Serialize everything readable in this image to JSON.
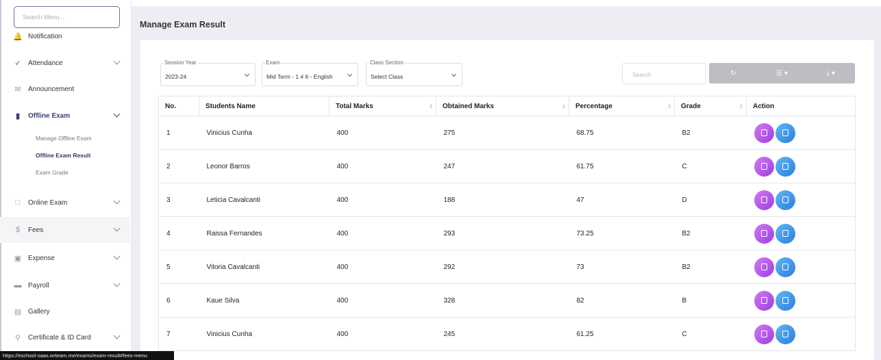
{
  "sidebar": {
    "search_placeholder": "Search Menu...",
    "items": [
      {
        "label": "Notification",
        "icon": "bell-icon"
      },
      {
        "label": "Attendance",
        "icon": "check-icon"
      },
      {
        "label": "Announcement",
        "icon": "megaphone-icon"
      },
      {
        "label": "Offline Exam",
        "icon": "book-icon"
      },
      {
        "label": "Online Exam",
        "icon": "laptop-icon"
      },
      {
        "label": "Fees",
        "icon": "dollar-icon"
      },
      {
        "label": "Expense",
        "icon": "money-icon"
      },
      {
        "label": "Payroll",
        "icon": "card-icon"
      },
      {
        "label": "Gallery",
        "icon": "image-icon"
      },
      {
        "label": "Certificate & ID Card",
        "icon": "trophy-icon"
      }
    ],
    "offline_exam_sub": [
      "Manage Offline Exam",
      "Offline Exam Result",
      "Exam Grade"
    ]
  },
  "page": {
    "title": "Manage Exam Result"
  },
  "filters": {
    "session_year": {
      "label": "Session Year",
      "value": "2023-24"
    },
    "exam": {
      "label": "Exam",
      "value": "Mid Term - 1 # 6 - English"
    },
    "class_section": {
      "label": "Class Section",
      "value": "Select Class"
    }
  },
  "toolbar": {
    "search_placeholder": "Search",
    "refresh_icon": "refresh-icon",
    "columns_icon": "list-icon",
    "export_icon": "download-icon"
  },
  "table": {
    "headers": [
      "No.",
      "Students Name",
      "Total Marks",
      "Obtained Marks",
      "Percentage",
      "Grade",
      "Action"
    ],
    "rows": [
      [
        "1",
        "Vinicius Cunha",
        "400",
        "275",
        "68.75",
        "B2"
      ],
      [
        "2",
        "Leonor Barros",
        "400",
        "247",
        "61.75",
        "C"
      ],
      [
        "3",
        "Leticia Cavalcanti",
        "400",
        "188",
        "47",
        "D"
      ],
      [
        "4",
        "Raissa Fernandes",
        "400",
        "293",
        "73.25",
        "B2"
      ],
      [
        "5",
        "Vitoria Cavalcanti",
        "400",
        "292",
        "73",
        "B2"
      ],
      [
        "6",
        "Kaue Silva",
        "400",
        "328",
        "82",
        "B"
      ],
      [
        "7",
        "Vinicius Cunha",
        "400",
        "245",
        "61.25",
        "C"
      ]
    ]
  },
  "status_url": "https://eschool-saas.wrteam.me/exams/exam-result#fees-menu",
  "colors": {
    "accent": "#3c3f7a",
    "edit_button": "#b452e8",
    "pdf_button": "#3a95e8",
    "background": "#efedf3"
  }
}
